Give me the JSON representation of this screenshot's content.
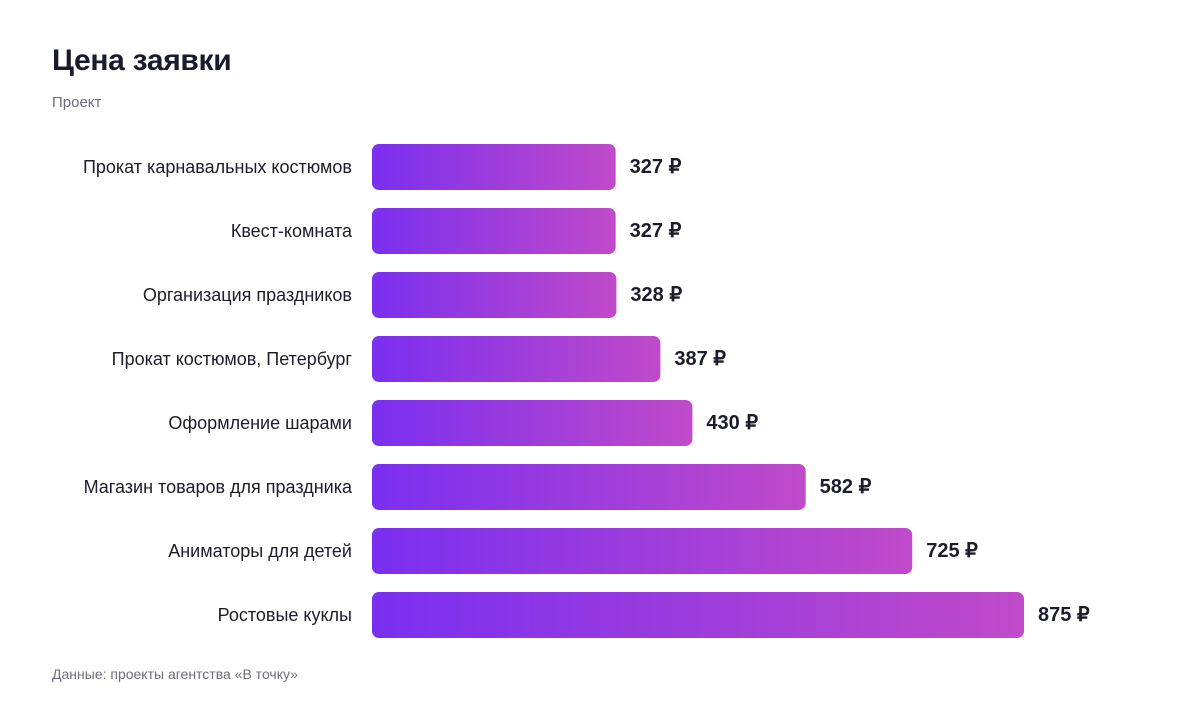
{
  "header": {
    "title": "Цена заявки",
    "subtitle": "Проект"
  },
  "footer": {
    "source": "Данные: проекты агентства «В точку»"
  },
  "colors": {
    "bar_start": "#7a2ff0",
    "bar_end": "#c04ac9",
    "label": "#1c1c2b",
    "value": "#1c1c2b"
  },
  "chart_data": {
    "type": "bar",
    "orientation": "horizontal",
    "title": "Цена заявки",
    "subtitle": "Проект",
    "categories": [
      "Прокат карнавальных костюмов",
      "Квест-комната",
      "Организация праздников",
      "Прокат костюмов, Петербург",
      "Оформление шарами",
      "Магазин товаров для праздника",
      "Аниматоры для детей",
      "Ростовые куклы"
    ],
    "values": [
      327,
      327,
      328,
      387,
      430,
      582,
      725,
      875
    ],
    "value_labels": [
      "327 ₽",
      "327 ₽",
      "328 ₽",
      "387 ₽",
      "430 ₽",
      "582 ₽",
      "725 ₽",
      "875 ₽"
    ],
    "unit": "₽",
    "xlim": [
      0,
      875
    ],
    "grid": false,
    "legend": "none"
  }
}
